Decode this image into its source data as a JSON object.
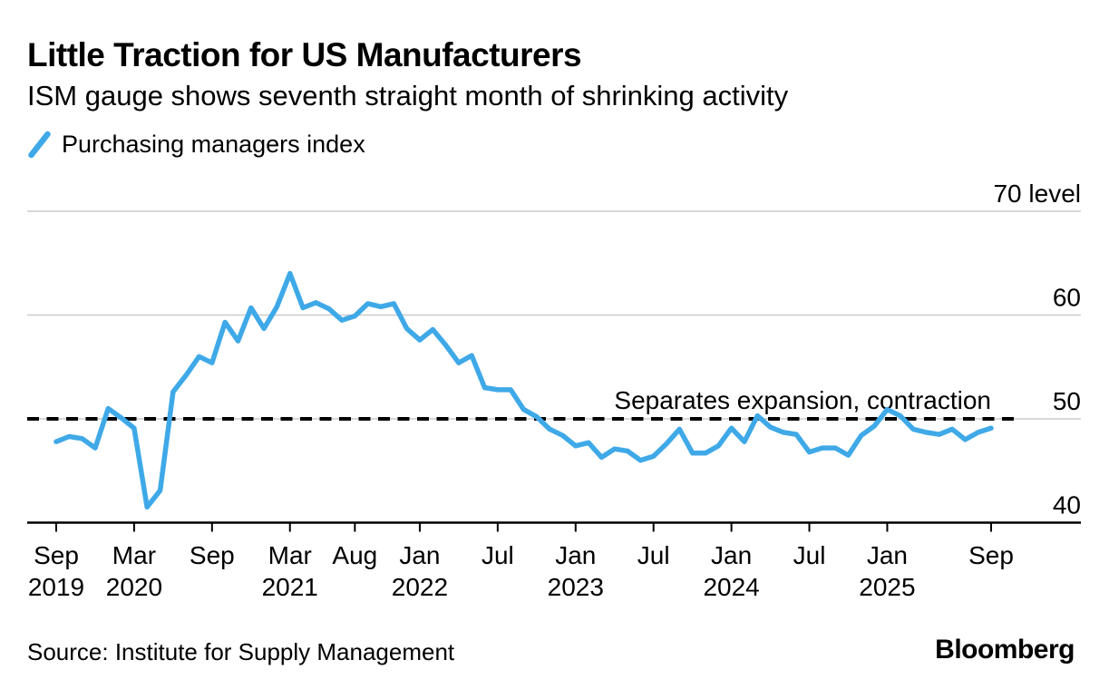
{
  "header": {
    "title": "Little Traction for US Manufacturers",
    "subtitle": "ISM gauge shows seventh straight month of shrinking activity"
  },
  "legend": {
    "label": "Purchasing managers index",
    "color": "#3fa9e8"
  },
  "footer": {
    "source": "Source: Institute for Supply Management",
    "brand": "Bloomberg"
  },
  "chart_data": {
    "type": "line",
    "title": "Little Traction for US Manufacturers",
    "subtitle": "ISM gauge shows seventh straight month of shrinking activity",
    "legend_position": "top-left",
    "grid": "horizontal",
    "ylim": [
      40,
      70
    ],
    "colors": {
      "line": "#3fa9e8",
      "grid": "#cccccc",
      "axis": "#000000",
      "reference": "#000000"
    },
    "y_ticks": [
      {
        "label": "70 level",
        "value": 70
      },
      {
        "label": "60",
        "value": 60
      },
      {
        "label": "50",
        "value": 50
      },
      {
        "label": "40",
        "value": 40
      }
    ],
    "x_ticks": [
      {
        "month": "Sep",
        "year": "2019",
        "index": 0
      },
      {
        "month": "Mar",
        "year": "2020",
        "index": 6
      },
      {
        "month": "Sep",
        "year": "",
        "index": 12
      },
      {
        "month": "Mar",
        "year": "2021",
        "index": 18
      },
      {
        "month": "Aug",
        "year": "",
        "index": 23
      },
      {
        "month": "Jan",
        "year": "2022",
        "index": 28
      },
      {
        "month": "Jul",
        "year": "",
        "index": 34
      },
      {
        "month": "Jan",
        "year": "2023",
        "index": 40
      },
      {
        "month": "Jul",
        "year": "",
        "index": 46
      },
      {
        "month": "Jan",
        "year": "2024",
        "index": 52
      },
      {
        "month": "Jul",
        "year": "",
        "index": 58
      },
      {
        "month": "Jan",
        "year": "2025",
        "index": 64
      },
      {
        "month": "Sep",
        "year": "",
        "index": 72
      }
    ],
    "reference_line": {
      "value": 50,
      "style": "dashed",
      "annotation": "Separates expansion, contraction"
    },
    "series": [
      {
        "name": "Purchasing managers index",
        "start": "2019-09",
        "end": "2025-09",
        "frequency": "monthly",
        "values": [
          47.8,
          48.3,
          48.1,
          47.2,
          51.0,
          50.1,
          49.1,
          41.5,
          43.1,
          52.6,
          54.2,
          56.0,
          55.4,
          59.3,
          57.5,
          60.7,
          58.7,
          60.8,
          64.0,
          60.7,
          61.2,
          60.6,
          59.5,
          59.9,
          61.1,
          60.8,
          61.1,
          58.7,
          57.6,
          58.6,
          57.1,
          55.4,
          56.1,
          53.0,
          52.8,
          52.8,
          50.9,
          50.2,
          49.0,
          48.4,
          47.4,
          47.7,
          46.3,
          47.1,
          46.9,
          46.0,
          46.4,
          47.6,
          49.0,
          46.7,
          46.7,
          47.4,
          49.1,
          47.8,
          50.3,
          49.2,
          48.7,
          48.5,
          46.8,
          47.2,
          47.2,
          46.5,
          48.4,
          49.3,
          50.9,
          50.3,
          49.0,
          48.7,
          48.5,
          49.0,
          48.0,
          48.7,
          49.1
        ]
      }
    ]
  }
}
